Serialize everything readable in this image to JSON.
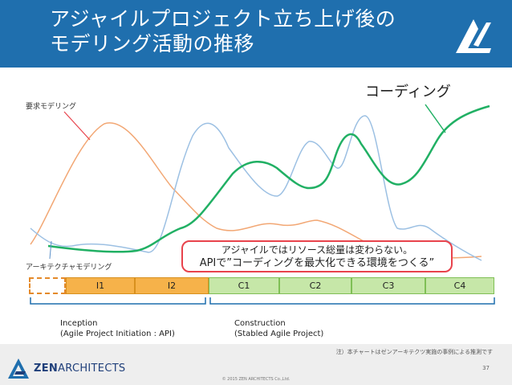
{
  "header": {
    "title_line1": "アジャイルプロジェクト立ち上げ後の",
    "title_line2": "モデリング活動の推移",
    "bg_color": "#1f6fae"
  },
  "labels": {
    "requirements_modeling": "要求モデリング",
    "architecture_modeling": "アーキテクチャモデリング",
    "coding": "コーディング"
  },
  "callout": {
    "line1": "アジャイルではリソース総量は変わらない。",
    "line2": "APIで”コーディングを最大化できる環境をつくる”",
    "border_color": "#e8434c"
  },
  "phases": [
    "",
    "I1",
    "I2",
    "C1",
    "C2",
    "C3",
    "C4"
  ],
  "phase_groups": {
    "inception": {
      "line1": "Inception",
      "line2": "(Agile Project Initiation : API)"
    },
    "construction": {
      "line1": "Construction",
      "line2": "(Stabled Agile Project)"
    }
  },
  "series_colors": {
    "requirements": "#f2a774",
    "architecture": "#9cc0e3",
    "coding": "#21b064",
    "pointer_req": "#e8434c"
  },
  "footer": {
    "note": "注）本チャートはゼンアーキテクツ実施の事例による推測です",
    "page": "37",
    "copyright": "© 2015 ZEN ARCHITECTS Co.,Ltd.",
    "brand_bold": "ZEN",
    "brand_rest": "ARCHITECTS"
  }
}
